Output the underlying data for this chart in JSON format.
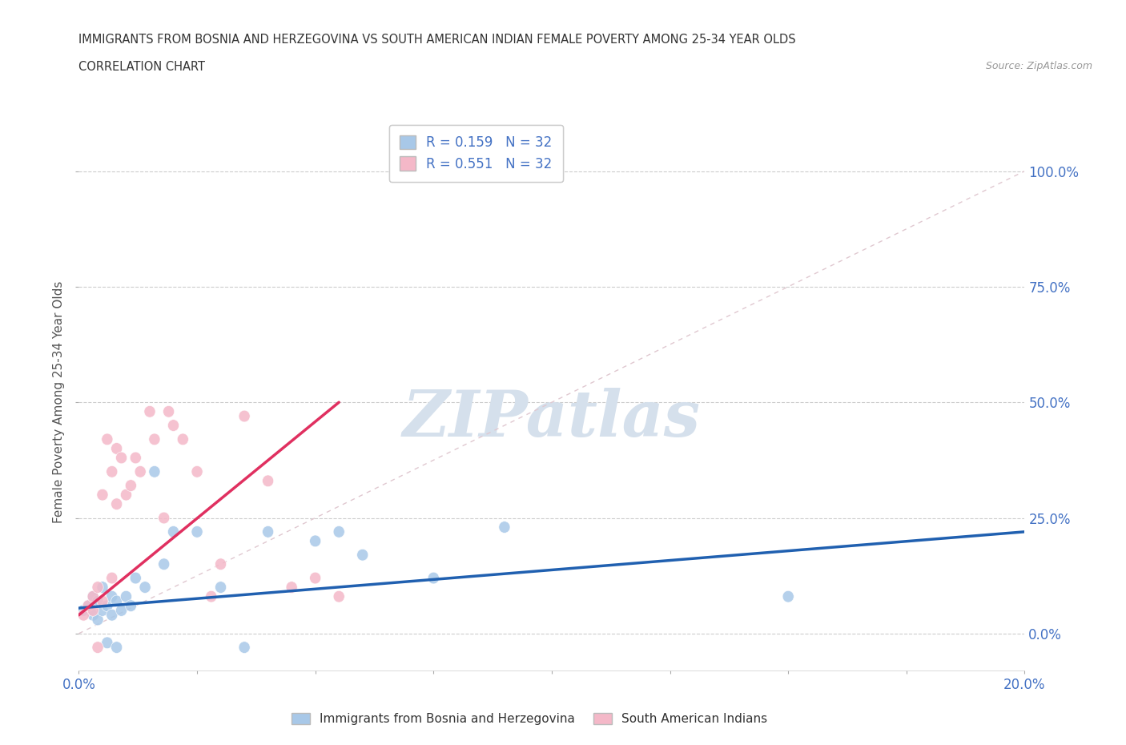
{
  "title_line1": "IMMIGRANTS FROM BOSNIA AND HERZEGOVINA VS SOUTH AMERICAN INDIAN FEMALE POVERTY AMONG 25-34 YEAR OLDS",
  "title_line2": "CORRELATION CHART",
  "source_text": "Source: ZipAtlas.com",
  "ylabel": "Female Poverty Among 25-34 Year Olds",
  "xlim": [
    0.0,
    0.2
  ],
  "ylim": [
    -0.08,
    1.08
  ],
  "yticks": [
    0.0,
    0.25,
    0.5,
    0.75,
    1.0
  ],
  "ytick_labels": [
    "0.0%",
    "25.0%",
    "50.0%",
    "75.0%",
    "100.0%"
  ],
  "xticks": [
    0.0,
    0.025,
    0.05,
    0.075,
    0.1,
    0.125,
    0.15,
    0.175,
    0.2
  ],
  "xtick_labels": [
    "0.0%",
    "",
    "",
    "",
    "",
    "",
    "",
    "",
    "20.0%"
  ],
  "blue_R": 0.159,
  "blue_N": 32,
  "pink_R": 0.551,
  "pink_N": 32,
  "blue_color": "#a8c8e8",
  "pink_color": "#f4b8c8",
  "blue_line_color": "#2060b0",
  "pink_line_color": "#e03060",
  "diag_line_color": "#e0c8d0",
  "watermark_color": "#d5e0ec",
  "legend_label_blue": "Immigrants from Bosnia and Herzegovina",
  "legend_label_pink": "South American Indians",
  "blue_scatter_x": [
    0.001,
    0.002,
    0.003,
    0.003,
    0.004,
    0.004,
    0.005,
    0.005,
    0.006,
    0.006,
    0.007,
    0.007,
    0.008,
    0.008,
    0.009,
    0.01,
    0.011,
    0.012,
    0.014,
    0.016,
    0.018,
    0.02,
    0.025,
    0.03,
    0.035,
    0.04,
    0.05,
    0.055,
    0.06,
    0.075,
    0.09,
    0.15
  ],
  "blue_scatter_y": [
    0.05,
    0.06,
    0.04,
    0.08,
    0.03,
    0.07,
    0.05,
    0.1,
    0.06,
    -0.02,
    0.04,
    0.08,
    0.07,
    -0.03,
    0.05,
    0.08,
    0.06,
    0.12,
    0.1,
    0.35,
    0.15,
    0.22,
    0.22,
    0.1,
    -0.03,
    0.22,
    0.2,
    0.22,
    0.17,
    0.12,
    0.23,
    0.08
  ],
  "pink_scatter_x": [
    0.001,
    0.002,
    0.003,
    0.003,
    0.004,
    0.004,
    0.005,
    0.005,
    0.006,
    0.007,
    0.007,
    0.008,
    0.008,
    0.009,
    0.01,
    0.011,
    0.012,
    0.013,
    0.015,
    0.016,
    0.018,
    0.019,
    0.02,
    0.022,
    0.025,
    0.028,
    0.03,
    0.035,
    0.04,
    0.045,
    0.05,
    0.055
  ],
  "pink_scatter_y": [
    0.04,
    0.06,
    0.05,
    0.08,
    0.1,
    -0.03,
    0.07,
    0.3,
    0.42,
    0.35,
    0.12,
    0.28,
    0.4,
    0.38,
    0.3,
    0.32,
    0.38,
    0.35,
    0.48,
    0.42,
    0.25,
    0.48,
    0.45,
    0.42,
    0.35,
    0.08,
    0.15,
    0.47,
    0.33,
    0.1,
    0.12,
    0.08
  ],
  "background_color": "#ffffff",
  "grid_color": "#cccccc",
  "blue_line_x": [
    0.0,
    0.2
  ],
  "blue_line_y": [
    0.055,
    0.22
  ],
  "pink_line_x": [
    0.0,
    0.055
  ],
  "pink_line_y": [
    0.04,
    0.5
  ]
}
